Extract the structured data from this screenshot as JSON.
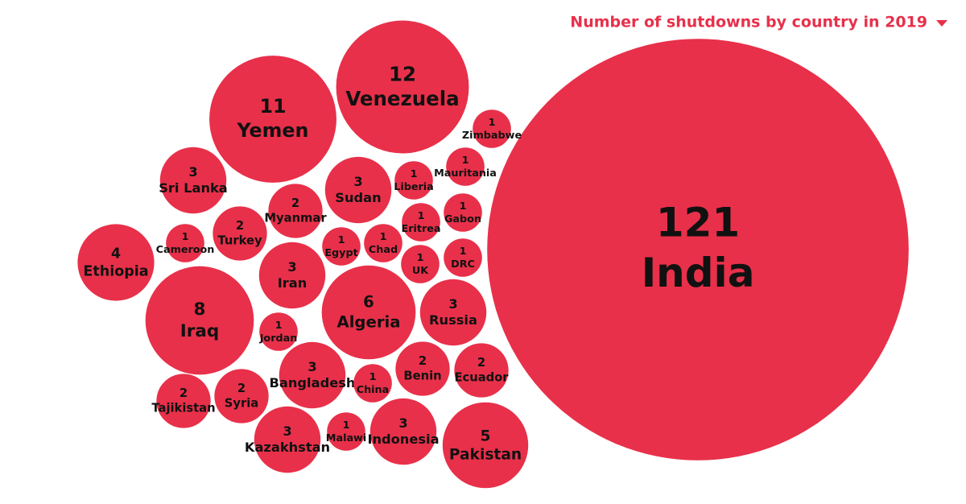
{
  "chart_data": {
    "type": "packed-bubble",
    "title": "Number of shutdowns by country in 2019",
    "color": "#e8304a",
    "categories": [
      "India",
      "Venezuela",
      "Yemen",
      "Zimbabwe",
      "Mauritania",
      "Sri Lanka",
      "Sudan",
      "Liberia",
      "Myanmar",
      "Gabon",
      "Eritrea",
      "Cameroon",
      "Turkey",
      "Ethiopia",
      "Egypt",
      "Chad",
      "UK",
      "DRC",
      "Iran",
      "Iraq",
      "Algeria",
      "Russia",
      "Jordan",
      "Bangladesh",
      "China",
      "Benin",
      "Ecuador",
      "Tajikistan",
      "Syria",
      "Kazakhstan",
      "Malawi",
      "Indonesia",
      "Pakistan"
    ],
    "values": [
      121,
      12,
      11,
      1,
      1,
      3,
      3,
      1,
      2,
      1,
      1,
      1,
      2,
      4,
      1,
      1,
      1,
      1,
      3,
      8,
      6,
      3,
      1,
      3,
      1,
      2,
      2,
      2,
      2,
      3,
      1,
      3,
      5
    ]
  }
}
